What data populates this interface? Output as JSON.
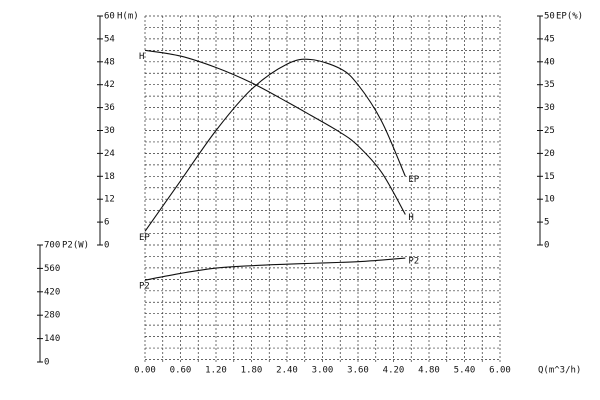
{
  "chart_data": {
    "type": "line",
    "x_label": "Q(m^3/h)",
    "y_label": "H(m)",
    "y2_label": "EP(%)",
    "y3_label": "P2(W)",
    "x": [
      0,
      0.6,
      1.2,
      1.8,
      2.4,
      2.8,
      3.3,
      3.6,
      4.0,
      4.4
    ],
    "series": [
      {
        "name": "H",
        "color": "#111111",
        "axis": "y",
        "values": [
          51,
          49.5,
          46.5,
          42.5,
          37.5,
          34,
          29.5,
          26,
          19,
          8
        ]
      },
      {
        "name": "EP",
        "color": "#111111",
        "axis": "y2",
        "values": [
          3,
          14,
          25,
          34,
          39.5,
          40.5,
          38.5,
          35,
          27,
          15
        ]
      },
      {
        "name": "P2",
        "color": "#111111",
        "axis": "y3",
        "values": [
          490,
          530,
          562,
          576,
          585,
          590,
          596,
          600,
          610,
          622
        ]
      }
    ],
    "xlim": [
      0,
      6
    ],
    "xticks": [
      {
        "value": 0,
        "label": "0.00"
      },
      {
        "value": 0.6,
        "label": "0.60"
      },
      {
        "value": 1.2,
        "label": "1.20"
      },
      {
        "value": 1.8,
        "label": "1.80"
      },
      {
        "value": 2.4,
        "label": "2.40"
      },
      {
        "value": 3,
        "label": "3.00"
      },
      {
        "value": 3.6,
        "label": "3.60"
      },
      {
        "value": 4.2,
        "label": "4.20"
      },
      {
        "value": 4.8,
        "label": "4.80"
      },
      {
        "value": 5.4,
        "label": "5.40"
      },
      {
        "value": 6,
        "label": "6.00"
      }
    ],
    "ylim": [
      0,
      60
    ],
    "yticks": [
      0,
      6,
      12,
      18,
      24,
      30,
      36,
      42,
      48,
      54,
      60
    ],
    "y2lim": [
      0,
      50
    ],
    "y2ticks": [
      0,
      5,
      10,
      15,
      20,
      25,
      30,
      35,
      40,
      45,
      50
    ],
    "y3lim": [
      0,
      700
    ],
    "y3ticks": [
      0,
      140,
      280,
      420,
      560,
      700
    ],
    "grid": true
  }
}
